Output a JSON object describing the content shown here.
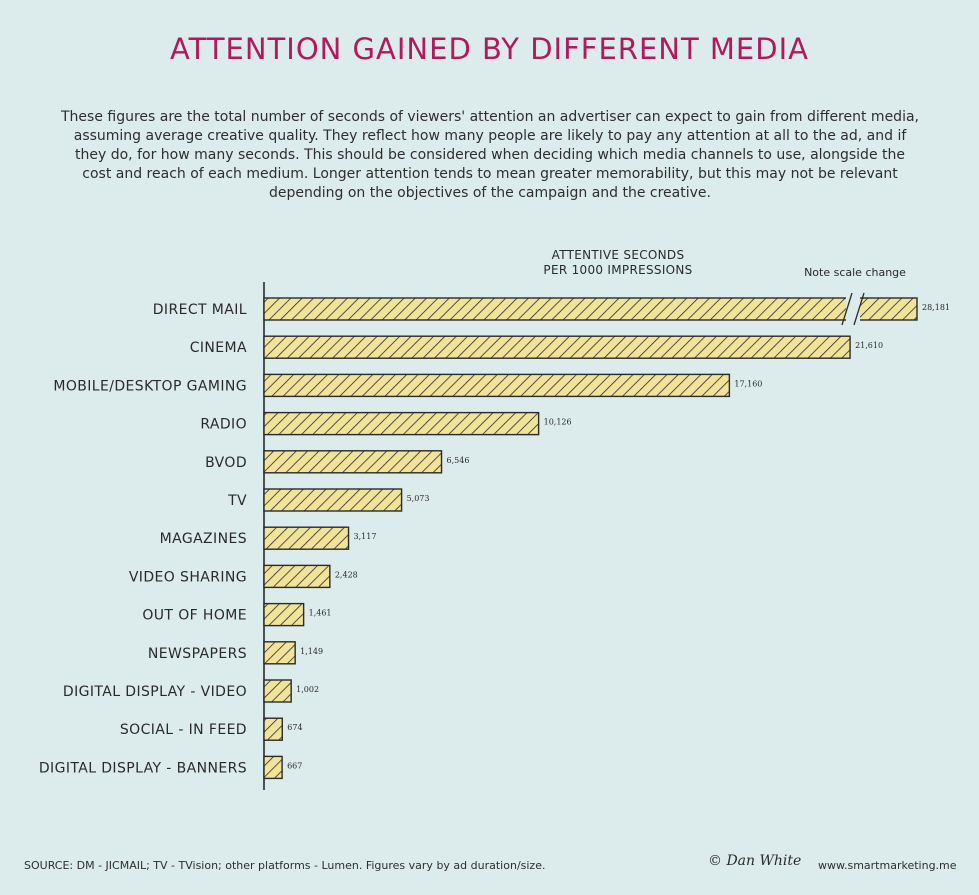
{
  "colors": {
    "background": "#dcebeb",
    "title": "#b0195c",
    "bar_fill": "#f1e39a",
    "bar_hatch": "#2a2a2a"
  },
  "header": {
    "title": "ATTENTION GAINED BY DIFFERENT MEDIA",
    "description": "These figures are the total number of seconds of viewers' attention an advertiser can expect to gain from different media, assuming average creative quality. They reflect how many people are likely to pay any attention at all to the ad, and if they do, for how many seconds. This should be considered when deciding which media channels to use, alongside the cost and reach of each medium. Longer attention tends to mean greater memorability, but this may not be relevant depending on the objectives of the campaign and the creative."
  },
  "chart_data": {
    "type": "bar",
    "orientation": "horizontal",
    "unit_label_line1": "ATTENTIVE SECONDS",
    "unit_label_line2": "PER 1000 IMPRESSIONS",
    "note": "Note scale change",
    "scale_break_category": "DIRECT MAIL",
    "categories": [
      "DIRECT MAIL",
      "CINEMA",
      "MOBILE/DESKTOP GAMING",
      "RADIO",
      "BVOD",
      "TV",
      "MAGAZINES",
      "VIDEO SHARING",
      "OUT OF HOME",
      "NEWSPAPERS",
      "DIGITAL DISPLAY - VIDEO",
      "SOCIAL - IN FEED",
      "DIGITAL DISPLAY - BANNERS"
    ],
    "values": [
      28181,
      21610,
      17160,
      10126,
      6546,
      5073,
      3117,
      2428,
      1461,
      1149,
      1002,
      674,
      667
    ],
    "value_labels": [
      "28,181",
      "21,610",
      "17,160",
      "10,126",
      "6,546",
      "5,073",
      "3,117",
      "2,428",
      "1,461",
      "1,149",
      "1,002",
      "674",
      "667"
    ],
    "grid": false
  },
  "footer": {
    "source": "SOURCE: DM - JICMAIL; TV - TVision; other platforms - Lumen. Figures vary by ad duration/size.",
    "credit": "© Dan White",
    "url": "www.smartmarketing.me"
  }
}
